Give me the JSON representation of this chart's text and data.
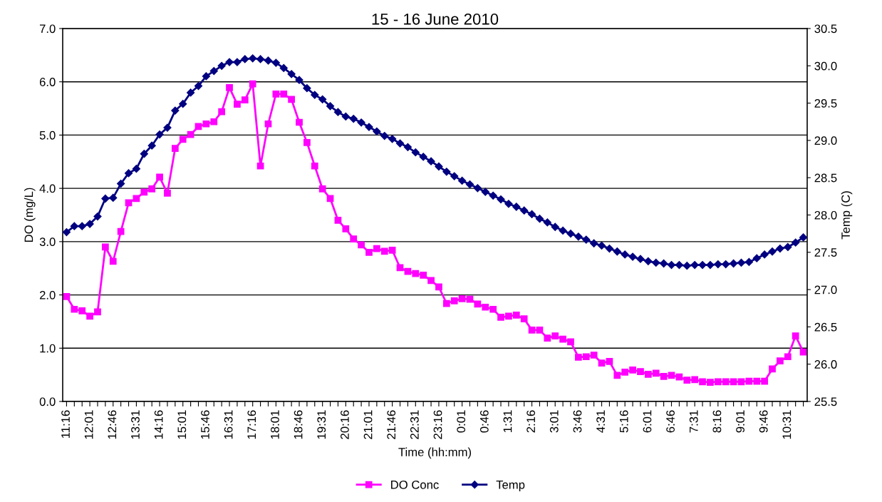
{
  "chart_data": {
    "type": "line",
    "title": "15 - 16 June 2010",
    "xlabel": "Time (hh:mm)",
    "ylabel": "DO (mg/L)",
    "y2label": "Temp (C)",
    "categories": [
      "11:16",
      null,
      null,
      "12:01",
      null,
      null,
      "12:46",
      null,
      null,
      "13:31",
      null,
      null,
      "14:16",
      null,
      null,
      "15:01",
      null,
      null,
      "15:46",
      null,
      null,
      "16:31",
      null,
      null,
      "17:16",
      null,
      null,
      "18:01",
      null,
      null,
      "18:46",
      null,
      null,
      "19:31",
      null,
      null,
      "20:16",
      null,
      null,
      "21:01",
      null,
      null,
      "21:46",
      null,
      null,
      "22:31",
      null,
      null,
      "23:16",
      null,
      null,
      "0:01",
      null,
      null,
      "0:46",
      null,
      null,
      "1:31",
      null,
      null,
      "2:16",
      null,
      null,
      "3:01",
      null,
      null,
      "3:46",
      null,
      null,
      "4:31",
      null,
      null,
      "5:16",
      null,
      null,
      "6:01",
      null,
      null,
      "6:46",
      null,
      null,
      "7:31",
      null,
      null,
      "8:16",
      null,
      null,
      "9:01",
      null,
      null,
      "9:46",
      null,
      null,
      "10:31",
      null,
      null
    ],
    "series": [
      {
        "name": "DO Conc",
        "color": "#ff00ff",
        "marker": "square",
        "values": [
          1.97,
          1.73,
          1.7,
          1.6,
          1.68,
          2.9,
          2.63,
          3.19,
          3.73,
          3.81,
          3.93,
          3.99,
          4.21,
          3.91,
          4.75,
          4.92,
          5.01,
          5.16,
          5.21,
          5.25,
          5.44,
          5.89,
          5.58,
          5.66,
          5.96,
          4.42,
          5.21,
          5.77,
          5.77,
          5.67,
          5.24,
          4.86,
          4.42,
          3.99,
          3.81,
          3.4,
          3.24,
          3.05,
          2.94,
          2.8,
          2.87,
          2.82,
          2.84,
          2.51,
          2.44,
          2.4,
          2.37,
          2.27,
          2.15,
          1.84,
          1.89,
          1.93,
          1.92,
          1.83,
          1.77,
          1.73,
          1.58,
          1.6,
          1.62,
          1.55,
          1.34,
          1.34,
          1.19,
          1.23,
          1.17,
          1.12,
          0.83,
          0.84,
          0.87,
          0.72,
          0.75,
          0.49,
          0.55,
          0.59,
          0.56,
          0.51,
          0.53,
          0.47,
          0.49,
          0.46,
          0.4,
          0.41,
          0.37,
          0.36,
          0.37,
          0.37,
          0.37,
          0.37,
          0.38,
          0.38,
          0.38,
          0.61,
          0.76,
          0.84,
          1.23,
          0.93
        ]
      },
      {
        "name": "Temp",
        "color": "#000080",
        "marker": "diamond",
        "axis": "y2",
        "values": [
          27.77,
          27.85,
          27.85,
          27.88,
          27.98,
          28.22,
          28.23,
          28.42,
          28.56,
          28.62,
          28.82,
          28.93,
          29.08,
          29.17,
          29.4,
          29.49,
          29.64,
          29.73,
          29.86,
          29.93,
          30.0,
          30.05,
          30.05,
          30.09,
          30.1,
          30.09,
          30.07,
          30.04,
          29.97,
          29.89,
          29.81,
          29.7,
          29.61,
          29.55,
          29.46,
          29.38,
          29.32,
          29.29,
          29.24,
          29.18,
          29.12,
          29.06,
          29.02,
          28.96,
          28.91,
          28.84,
          28.78,
          28.72,
          28.65,
          28.58,
          28.52,
          28.46,
          28.41,
          28.36,
          28.31,
          28.26,
          28.21,
          28.15,
          28.11,
          28.06,
          28.01,
          27.95,
          27.9,
          27.84,
          27.79,
          27.75,
          27.71,
          27.67,
          27.62,
          27.59,
          27.55,
          27.51,
          27.47,
          27.44,
          27.41,
          27.38,
          27.36,
          27.35,
          27.33,
          27.33,
          27.32,
          27.33,
          27.33,
          27.33,
          27.34,
          27.34,
          27.35,
          27.36,
          27.37,
          27.42,
          27.47,
          27.51,
          27.55,
          27.57,
          27.63,
          27.7
        ]
      }
    ],
    "ylim": [
      0,
      7
    ],
    "yticks": [
      {
        "value": 0,
        "label": "0.0"
      },
      {
        "value": 1,
        "label": "1.0"
      },
      {
        "value": 2,
        "label": "2.0"
      },
      {
        "value": 3,
        "label": "3.0"
      },
      {
        "value": 4,
        "label": "4.0"
      },
      {
        "value": 5,
        "label": "5.0"
      },
      {
        "value": 6,
        "label": "6.0"
      },
      {
        "value": 7,
        "label": "7.0"
      }
    ],
    "y2lim": [
      25.5,
      30.5
    ],
    "y2ticks": [
      25.5,
      {
        "value": 26,
        "label": "26.0"
      },
      26.5,
      {
        "value": 27,
        "label": "27.0"
      },
      27.5,
      {
        "value": 28,
        "label": "28.0"
      },
      28.5,
      {
        "value": 29,
        "label": "29.0"
      },
      29.5,
      {
        "value": 30,
        "label": "30.0"
      },
      30.5
    ],
    "grid": "y",
    "legend": "bottom",
    "line_style": "solid"
  }
}
